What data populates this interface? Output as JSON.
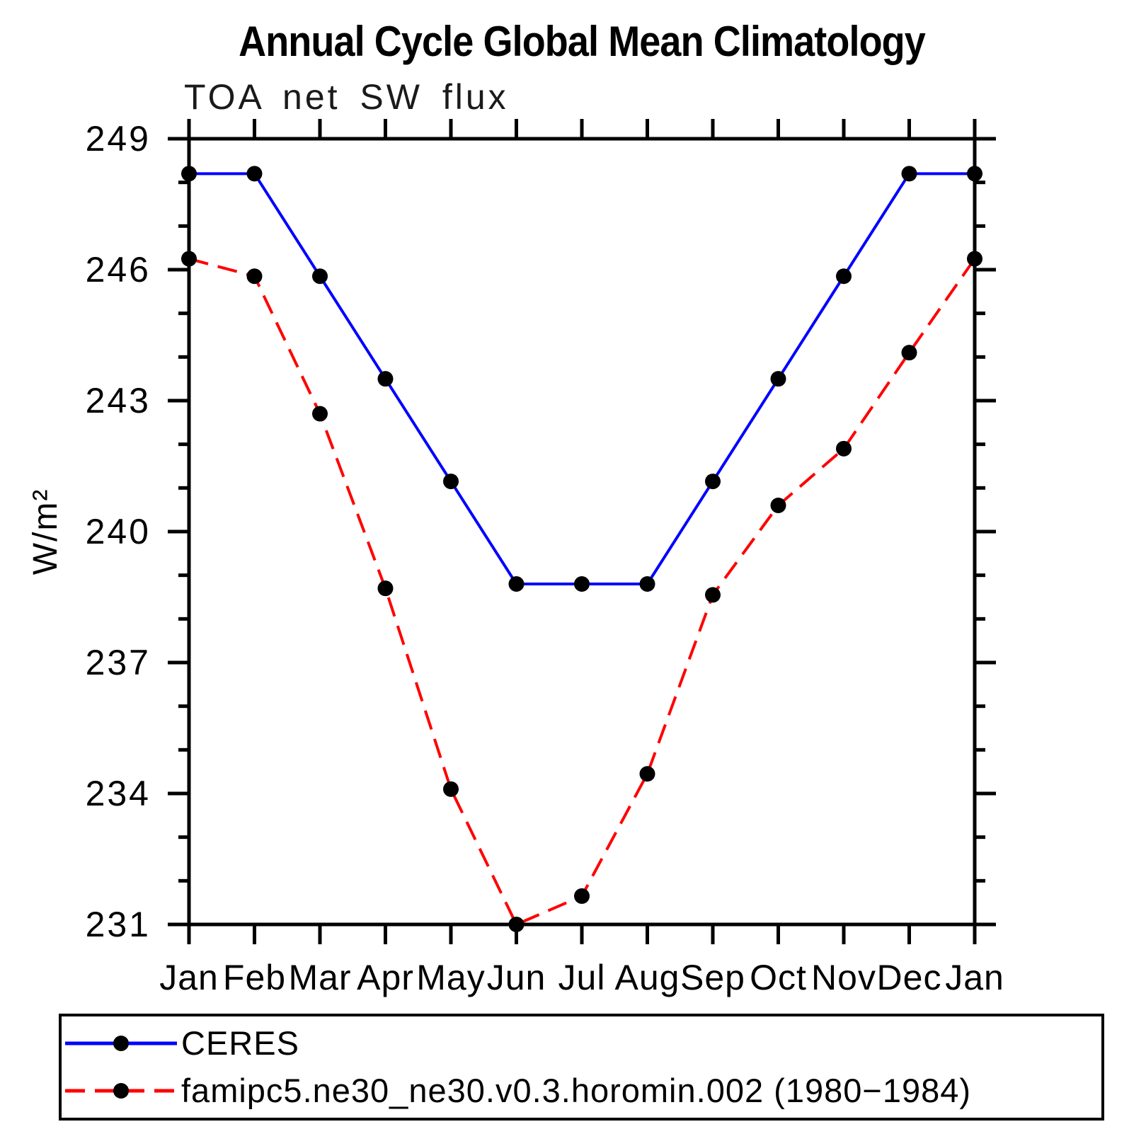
{
  "chart_data": {
    "type": "line",
    "title": "Annual Cycle Global Mean Climatology",
    "subtitle": "TOA net SW flux",
    "ylabel": "W/m²",
    "xlabel": "",
    "categories": [
      "Jan",
      "Feb",
      "Mar",
      "Apr",
      "May",
      "Jun",
      "Jul",
      "Aug",
      "Sep",
      "Oct",
      "Nov",
      "Dec",
      "Jan"
    ],
    "series": [
      {
        "name": "CERES",
        "color": "#0000ff",
        "line_style": "solid",
        "marker": "circle",
        "marker_color": "#000000",
        "values": [
          248.2,
          248.2,
          245.85,
          243.5,
          241.15,
          238.8,
          238.8,
          238.8,
          241.15,
          243.5,
          245.85,
          248.2,
          248.2
        ]
      },
      {
        "name": "famipc5.ne30_ne30.v0.3.horomin.002 (1980−1984)",
        "color": "#ff0000",
        "line_style": "dashed",
        "marker": "circle",
        "marker_color": "#000000",
        "values": [
          246.25,
          245.85,
          242.7,
          238.7,
          234.1,
          231.0,
          231.65,
          234.45,
          238.55,
          240.6,
          241.9,
          244.1,
          246.25
        ]
      }
    ],
    "ylim": [
      231,
      249
    ],
    "yticks_major": [
      249,
      246,
      243,
      240,
      237,
      234,
      231
    ],
    "ytick_minor_step": 1,
    "grid": false,
    "legend_position": "bottom-left box",
    "axis_color": "#000000"
  }
}
